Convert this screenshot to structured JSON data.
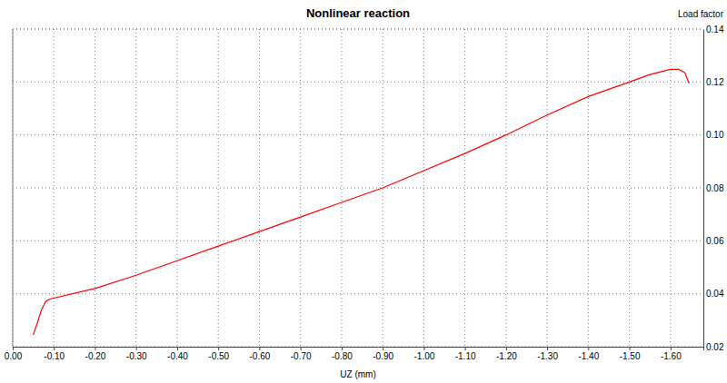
{
  "chart_data": {
    "type": "line",
    "title": "Nonlinear reaction",
    "x_label": "UZ (mm)",
    "y_label": "Load factor",
    "x": [
      -0.05,
      -0.06,
      -0.07,
      -0.08,
      -0.09,
      -0.2,
      -0.3,
      -0.4,
      -0.5,
      -0.6,
      -0.7,
      -0.8,
      -0.9,
      -1.0,
      -1.1,
      -1.2,
      -1.3,
      -1.4,
      -1.5,
      -1.55,
      -1.6,
      -1.62,
      -1.635,
      -1.645
    ],
    "values": [
      0.0245,
      0.029,
      0.034,
      0.037,
      0.038,
      0.042,
      0.047,
      0.0525,
      0.058,
      0.0635,
      0.069,
      0.0745,
      0.08,
      0.0865,
      0.093,
      0.1,
      0.1075,
      0.1145,
      0.12,
      0.1228,
      0.1248,
      0.1248,
      0.1235,
      0.1195
    ],
    "color": "#ff0000",
    "xlim": [
      0,
      -1.68
    ],
    "xticks": [
      {
        "value": 0,
        "label": "0.00"
      },
      {
        "value": -0.1,
        "label": "-0.10"
      },
      {
        "value": -0.2,
        "label": "-0.20"
      },
      {
        "value": -0.3,
        "label": "-0.30"
      },
      {
        "value": -0.4,
        "label": "-0.40"
      },
      {
        "value": -0.5,
        "label": "-0.50"
      },
      {
        "value": -0.6,
        "label": "-0.60"
      },
      {
        "value": -0.7,
        "label": "-0.70"
      },
      {
        "value": -0.8,
        "label": "-0.80"
      },
      {
        "value": -0.9,
        "label": "-0.90"
      },
      {
        "value": -1.0,
        "label": "-1.00"
      },
      {
        "value": -1.1,
        "label": "-1.10"
      },
      {
        "value": -1.2,
        "label": "-1.20"
      },
      {
        "value": -1.3,
        "label": "-1.30"
      },
      {
        "value": -1.4,
        "label": "-1.40"
      },
      {
        "value": -1.5,
        "label": "-1.50"
      },
      {
        "value": -1.6,
        "label": "-1.60"
      }
    ],
    "ylim": [
      0.02,
      0.14
    ],
    "yticks": [
      0.02,
      0.04,
      0.06,
      0.08,
      {
        "value": 0.1,
        "label": "0.10"
      },
      0.12,
      0.14
    ],
    "grid": true
  }
}
